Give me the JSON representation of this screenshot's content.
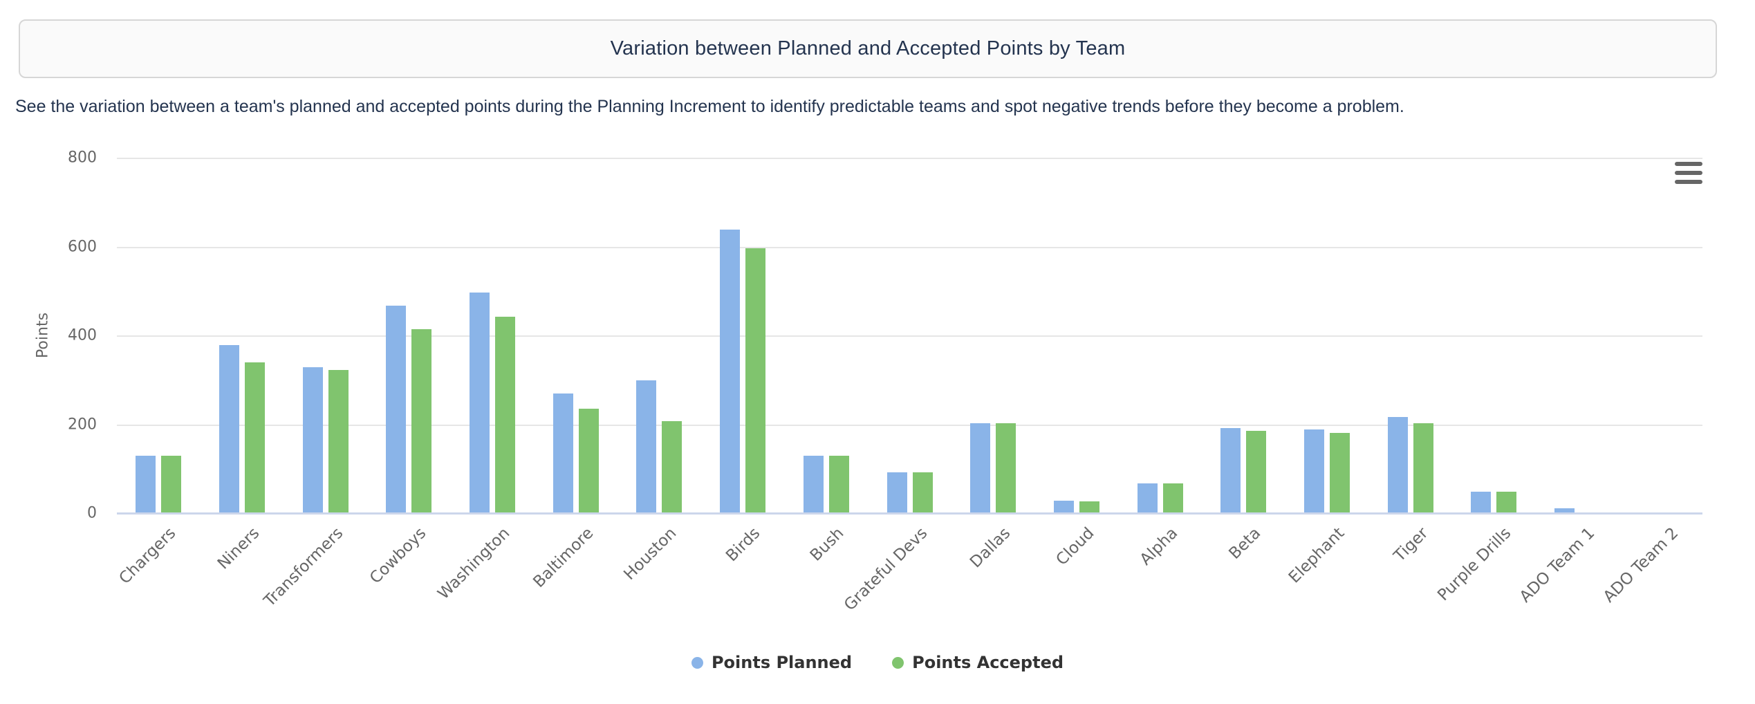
{
  "header": {
    "title": "Variation between Planned and Accepted Points by Team",
    "subtitle": "See the variation between a team's planned and accepted points during the Planning Increment to identify predictable teams and spot negative trends before they become a problem."
  },
  "chart_data": {
    "type": "bar",
    "title": "Variation between Planned and Accepted Points by Team",
    "xlabel": "",
    "ylabel": "Points",
    "ylim": [
      0,
      800
    ],
    "yticks": [
      0,
      200,
      400,
      600,
      800
    ],
    "grid": true,
    "legend_position": "bottom-center",
    "categories": [
      "Chargers",
      "Niners",
      "Transformers",
      "Cowboys",
      "Washington",
      "Baltimore",
      "Houston",
      "Birds",
      "Bush",
      "Grateful Devs",
      "Dallas",
      "Cloud",
      "Alpha",
      "Beta",
      "Elephant",
      "Tiger",
      "Purple Drills",
      "ADO Team 1",
      "ADO Team 2"
    ],
    "series": [
      {
        "name": "Points Planned",
        "color": "#8ab4e8",
        "values": [
          127,
          376,
          327,
          466,
          495,
          267,
          298,
          636,
          127,
          90,
          200,
          27,
          65,
          190,
          187,
          215,
          47,
          10,
          0
        ]
      },
      {
        "name": "Points Accepted",
        "color": "#80c46e",
        "values": [
          127,
          338,
          320,
          412,
          441,
          233,
          205,
          595,
          127,
          90,
          200,
          25,
          65,
          184,
          179,
          200,
          47,
          0,
          0
        ]
      }
    ]
  },
  "icons": {
    "context_menu": "hamburger-icon"
  },
  "colors": {
    "title_text": "#24344f",
    "axis_line": "#ccd6eb",
    "gridline": "#e6e6e6",
    "tick_text": "#666666",
    "legend_text": "#333333",
    "title_box_bg": "#fafafa",
    "title_box_border": "#d6d6d6"
  }
}
